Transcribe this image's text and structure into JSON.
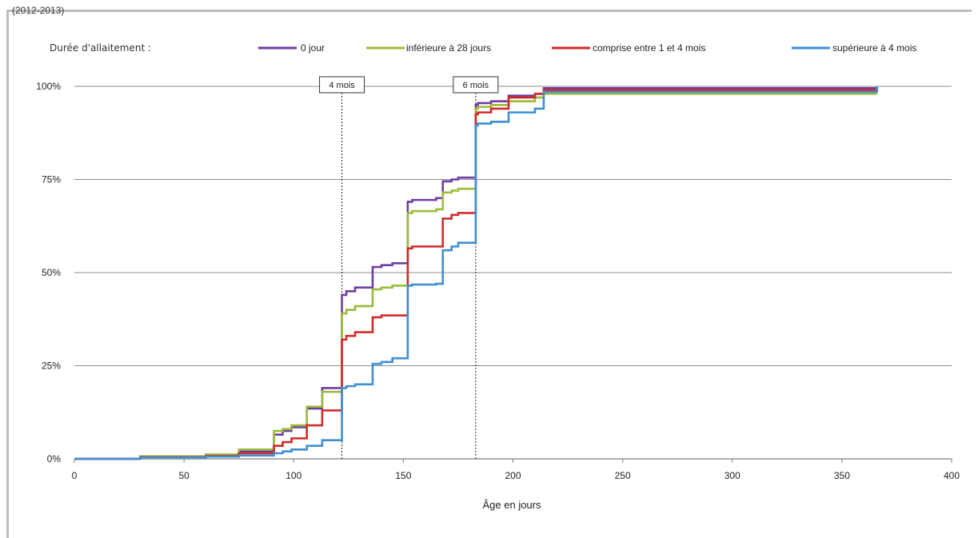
{
  "header_fragment": "(2012-2013)",
  "chart_data": {
    "type": "line",
    "title": "",
    "xlabel": "Âge en jours",
    "ylabel": "",
    "xlim": [
      0,
      400
    ],
    "ylim": [
      0,
      100
    ],
    "x_ticks": [
      0,
      50,
      100,
      150,
      200,
      250,
      300,
      350,
      400
    ],
    "y_ticks": [
      0,
      25,
      50,
      75,
      100
    ],
    "y_tick_labels": [
      "0%",
      "25%",
      "50%",
      "75%",
      "100%"
    ],
    "grid": "horizontal",
    "legend_position": "top",
    "legend_title": "Durée d'allaitement :",
    "series": [
      {
        "name": "0 jour",
        "color": "#6e3fa0",
        "x": [
          0,
          30,
          60,
          75,
          91,
          95,
          99,
          106,
          113,
          122,
          124,
          128,
          136,
          140,
          145,
          152,
          154,
          165,
          168,
          172,
          175,
          183,
          184,
          190,
          198,
          210,
          214,
          366
        ],
        "y": [
          0,
          0.7,
          1.0,
          2.0,
          6.5,
          7.5,
          8.5,
          13.5,
          19.0,
          44.0,
          45.0,
          46.0,
          51.5,
          52.0,
          52.5,
          69.0,
          69.5,
          70.0,
          74.5,
          75.0,
          75.5,
          95.0,
          95.5,
          96.0,
          97.5,
          98.0,
          99.5,
          100.0
        ]
      },
      {
        "name": "inférieure à 28 jours",
        "color": "#9bbb39",
        "x": [
          0,
          30,
          60,
          75,
          91,
          95,
          99,
          106,
          113,
          122,
          124,
          128,
          136,
          140,
          145,
          152,
          154,
          165,
          168,
          172,
          175,
          183,
          184,
          190,
          198,
          210,
          214,
          366
        ],
        "y": [
          0,
          0.7,
          1.2,
          2.5,
          7.5,
          8.0,
          9.0,
          14.0,
          18.0,
          39.0,
          40.0,
          41.0,
          45.5,
          46.0,
          46.5,
          66.0,
          66.5,
          67.0,
          71.5,
          72.0,
          72.5,
          94.0,
          94.5,
          95.0,
          96.0,
          97.0,
          98.0,
          98.0
        ]
      },
      {
        "name": "comprise entre 1 et 4 mois",
        "color": "#d12b2b",
        "x": [
          0,
          30,
          60,
          75,
          91,
          95,
          99,
          106,
          113,
          122,
          124,
          128,
          136,
          140,
          145,
          152,
          154,
          165,
          168,
          172,
          175,
          183,
          184,
          190,
          198,
          210,
          214,
          366
        ],
        "y": [
          0,
          0.5,
          0.8,
          1.5,
          3.5,
          4.5,
          5.5,
          9.0,
          13.0,
          32.0,
          33.0,
          34.0,
          38.0,
          38.5,
          38.5,
          56.5,
          57.0,
          57.0,
          64.5,
          65.5,
          66.0,
          92.5,
          93.0,
          94.0,
          97.0,
          98.0,
          99.0,
          99.5
        ]
      },
      {
        "name": "supérieure à 4 mois",
        "color": "#3f8fd2",
        "x": [
          0,
          30,
          60,
          75,
          91,
          95,
          99,
          106,
          113,
          122,
          124,
          128,
          136,
          140,
          145,
          152,
          154,
          165,
          168,
          172,
          175,
          183,
          184,
          190,
          198,
          210,
          214,
          366
        ],
        "y": [
          0,
          0.4,
          0.6,
          0.9,
          1.5,
          2.0,
          2.5,
          3.5,
          5.0,
          19.0,
          19.5,
          20.0,
          25.5,
          26.0,
          27.0,
          46.5,
          46.8,
          47.0,
          56.0,
          57.0,
          58.0,
          89.5,
          90.0,
          90.5,
          93.0,
          94.0,
          98.5,
          100.0
        ]
      }
    ],
    "annotations": [
      {
        "label": "4 mois",
        "x": 122
      },
      {
        "label": "6 mois",
        "x": 183
      }
    ]
  }
}
